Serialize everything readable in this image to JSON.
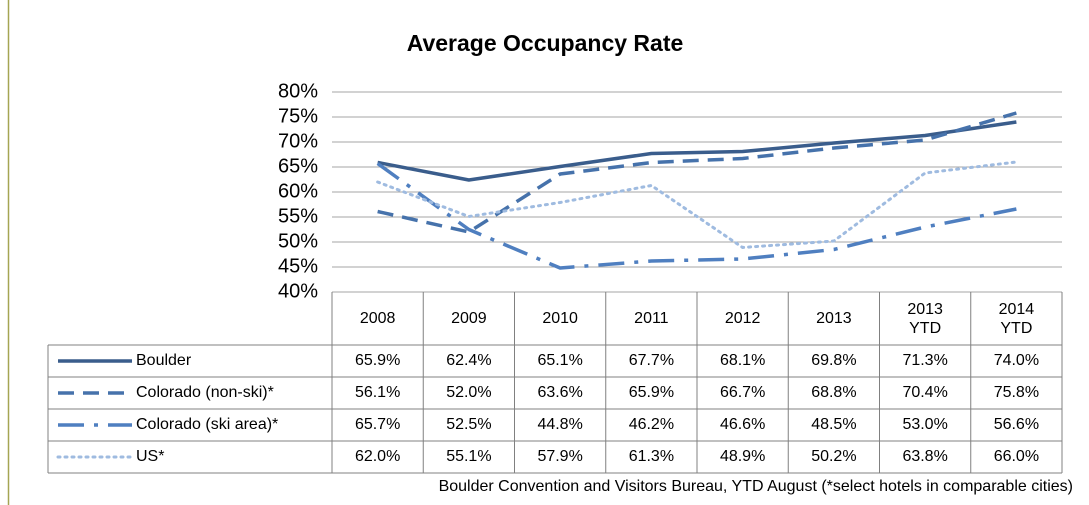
{
  "chart_data": {
    "type": "line",
    "title": "Average Occupancy Rate",
    "categories": [
      "2008",
      "2009",
      "2010",
      "2011",
      "2012",
      "2013",
      "2013 YTD",
      "2014 YTD"
    ],
    "series": [
      {
        "name": "Boulder",
        "color": "#3a5d8c",
        "dash": "solid",
        "values": [
          65.9,
          62.4,
          65.1,
          67.7,
          68.1,
          69.8,
          71.3,
          74.0
        ],
        "value_labels": [
          "65.9%",
          "62.4%",
          "65.1%",
          "67.7%",
          "68.1%",
          "69.8%",
          "71.3%",
          "74.0%"
        ]
      },
      {
        "name": "Colorado (non-ski)*",
        "color": "#4672ab",
        "dash": "dash",
        "values": [
          56.1,
          52.0,
          63.6,
          65.9,
          66.7,
          68.8,
          70.4,
          75.8
        ],
        "value_labels": [
          "56.1%",
          "52.0%",
          "63.6%",
          "65.9%",
          "66.7%",
          "68.8%",
          "70.4%",
          "75.8%"
        ]
      },
      {
        "name": "Colorado (ski area)*",
        "color": "#4f7fc0",
        "dash": "longdashdot",
        "values": [
          65.7,
          52.5,
          44.8,
          46.2,
          46.6,
          48.5,
          53.0,
          56.6
        ],
        "value_labels": [
          "65.7%",
          "52.5%",
          "44.8%",
          "46.2%",
          "46.6%",
          "48.5%",
          "53.0%",
          "56.6%"
        ]
      },
      {
        "name": "US*",
        "color": "#9fbbe0",
        "dash": "dot",
        "values": [
          62.0,
          55.1,
          57.9,
          61.3,
          48.9,
          50.2,
          63.8,
          66.0
        ],
        "value_labels": [
          "62.0%",
          "55.1%",
          "57.9%",
          "61.3%",
          "48.9%",
          "50.2%",
          "63.8%",
          "66.0%"
        ]
      }
    ],
    "ylim": [
      40,
      80
    ],
    "yticks": [
      {
        "value": 40,
        "label": "40%"
      },
      {
        "value": 45,
        "label": "45%"
      },
      {
        "value": 50,
        "label": "50%"
      },
      {
        "value": 55,
        "label": "55%"
      },
      {
        "value": 60,
        "label": "60%"
      },
      {
        "value": 65,
        "label": "65%"
      },
      {
        "value": 70,
        "label": "70%"
      },
      {
        "value": 75,
        "label": "75%"
      },
      {
        "value": 80,
        "label": "80%"
      }
    ],
    "grid": true,
    "source": "Boulder Convention and Visitors Bureau, YTD August (*select hotels in comparable cities)"
  }
}
